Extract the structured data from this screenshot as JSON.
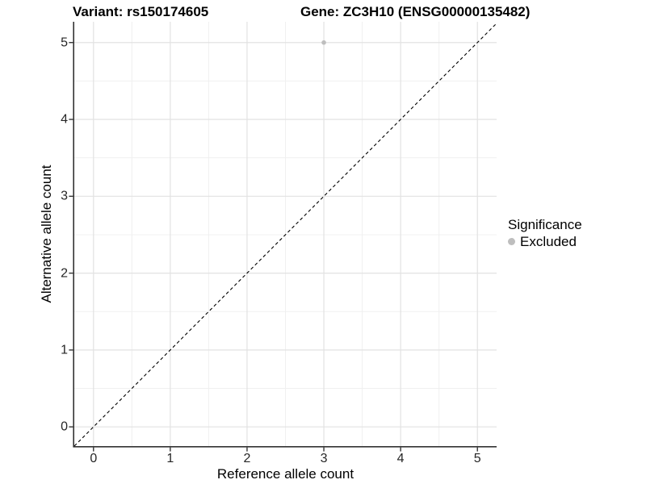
{
  "chart_data": {
    "type": "scatter",
    "titles": {
      "left": "Variant: rs150174605",
      "right": "Gene: ZC3H10 (ENSG00000135482)"
    },
    "xlabel": "Reference allele count",
    "ylabel": "Alternative allele count",
    "xlim": [
      -0.25,
      5.25
    ],
    "ylim": [
      -0.25,
      5.27
    ],
    "x_major_ticks": [
      0,
      1,
      2,
      3,
      4,
      5
    ],
    "y_major_ticks": [
      0,
      1,
      2,
      3,
      4,
      5
    ],
    "x_minor_ticks": [
      0.5,
      1.5,
      2.5,
      3.5,
      4.5
    ],
    "y_minor_ticks": [
      0.5,
      1.5,
      2.5,
      3.5,
      4.5
    ],
    "grid": true,
    "series": [
      {
        "name": "Excluded",
        "color": "#bebebe",
        "points": [
          {
            "x": 3,
            "y": 5
          }
        ]
      }
    ],
    "reference_line": {
      "type": "identity",
      "slope": 1,
      "intercept": 0,
      "style": "dashed",
      "color": "#000000"
    },
    "legend": {
      "title": "Significance",
      "position": "right",
      "items": [
        {
          "label": "Excluded",
          "color": "#bebebe"
        }
      ]
    },
    "colors": {
      "background": "#ffffff",
      "grid_major": "#e2e2e2",
      "grid_minor": "#f0f0f0",
      "axis_line": "#333333",
      "tick_mark": "#333333",
      "tick_label": "#262626",
      "title": "#000000",
      "point": "#bebebe"
    }
  }
}
